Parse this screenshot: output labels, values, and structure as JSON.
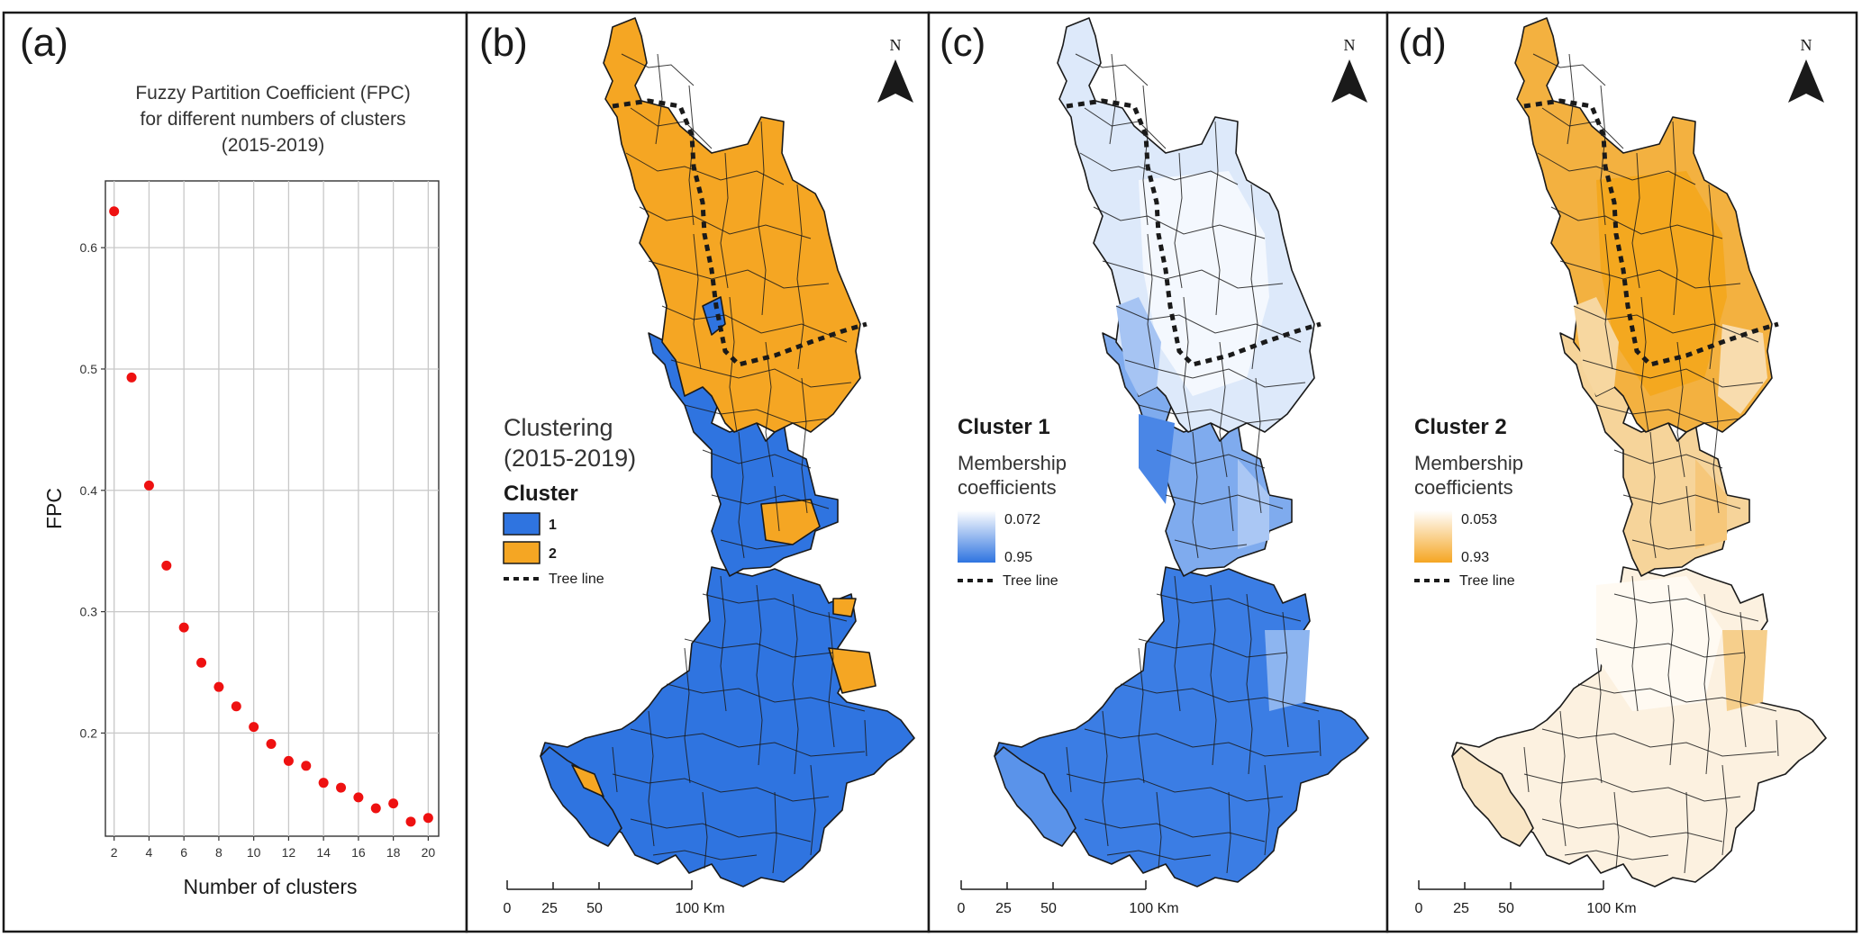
{
  "panels": {
    "a": {
      "letter": "(a)",
      "title_lines": [
        "Fuzzy Partition Coefficient (FPC)",
        "for different numbers of clusters",
        "(2015-2019)"
      ]
    },
    "b": {
      "letter": "(b)",
      "north": "N",
      "legend": {
        "title_lines": [
          "Clustering",
          "(2015-2019)"
        ],
        "heading": "Cluster",
        "items": [
          {
            "label": "1",
            "color": "#2f74e0"
          },
          {
            "label": "2",
            "color": "#f5a623"
          }
        ],
        "tree_line_label": "Tree line"
      },
      "scale": {
        "labels": [
          "0",
          "25",
          "50",
          "100 Km"
        ]
      }
    },
    "c": {
      "letter": "(c)",
      "north": "N",
      "legend": {
        "heading": "Cluster 1",
        "sub_lines": [
          "Membership",
          "coefficients"
        ],
        "ramp_min": "0.072",
        "ramp_max": "0.95",
        "ramp_light": "#ffffff",
        "ramp_dark": "#2f74e0",
        "tree_line_label": "Tree line"
      },
      "scale": {
        "labels": [
          "0",
          "25",
          "50",
          "100 Km"
        ]
      }
    },
    "d": {
      "letter": "(d)",
      "north": "N",
      "legend": {
        "heading": "Cluster 2",
        "sub_lines": [
          "Membership",
          "coefficients"
        ],
        "ramp_min": "0.053",
        "ramp_max": "0.93",
        "ramp_light": "#ffffff",
        "ramp_dark": "#f5a623",
        "tree_line_label": "Tree line"
      },
      "scale": {
        "labels": [
          "0",
          "25",
          "50",
          "100 Km"
        ]
      }
    }
  },
  "chart_data": {
    "type": "scatter",
    "title": "Fuzzy Partition Coefficient (FPC) for different numbers of clusters (2015-2019)",
    "xlabel": "Number of clusters",
    "ylabel": "FPC",
    "xlim": [
      1.5,
      20.6
    ],
    "ylim": [
      0.115,
      0.655
    ],
    "x_ticks": [
      "2",
      "4",
      "6",
      "8",
      "10",
      "12",
      "14",
      "16",
      "18",
      "20"
    ],
    "y_ticks": [
      "0.2",
      "0.3",
      "0.4",
      "0.5",
      "0.6"
    ],
    "grid": true,
    "point_color": "#ee1111",
    "x": [
      2,
      3,
      4,
      5,
      6,
      7,
      8,
      9,
      10,
      11,
      12,
      13,
      14,
      15,
      16,
      17,
      18,
      19,
      20
    ],
    "y": [
      0.63,
      0.493,
      0.404,
      0.338,
      0.287,
      0.258,
      0.238,
      0.222,
      0.205,
      0.191,
      0.177,
      0.173,
      0.159,
      0.155,
      0.147,
      0.138,
      0.142,
      0.127,
      0.13
    ]
  }
}
